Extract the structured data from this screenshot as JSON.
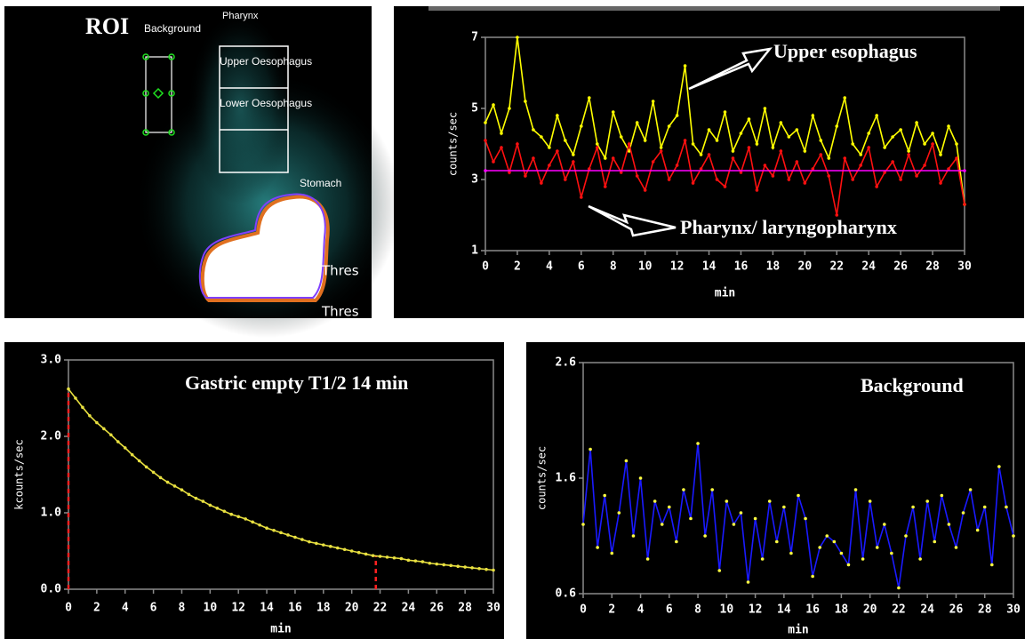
{
  "roi_image": {
    "title": "ROI",
    "labels": [
      "Background",
      "Pharynx",
      "Upper Oesophagus",
      "Lower Oesophagus",
      "Stomach",
      "Thres",
      "Thres"
    ]
  },
  "chart_data": [
    {
      "type": "line",
      "xlabel": "min",
      "ylabel": "counts/sec",
      "x": [
        0,
        0.5,
        1,
        1.5,
        2,
        2.5,
        3,
        3.5,
        4,
        4.5,
        5,
        5.5,
        6,
        6.5,
        7,
        7.5,
        8,
        8.5,
        9,
        9.5,
        10,
        10.5,
        11,
        11.5,
        12,
        12.5,
        13,
        13.5,
        14,
        14.5,
        15,
        15.5,
        16,
        16.5,
        17,
        17.5,
        18,
        18.5,
        19,
        19.5,
        20,
        20.5,
        21,
        21.5,
        22,
        22.5,
        23,
        23.5,
        24,
        24.5,
        25,
        25.5,
        26,
        26.5,
        27,
        27.5,
        28,
        28.5,
        29,
        29.5,
        30
      ],
      "series": [
        {
          "color": "#ffff00",
          "values": [
            4.6,
            5.1,
            4.3,
            5.0,
            7.0,
            5.2,
            4.4,
            4.2,
            3.9,
            4.8,
            4.1,
            3.7,
            4.5,
            5.3,
            4.0,
            3.6,
            4.9,
            4.2,
            3.8,
            4.6,
            4.1,
            5.2,
            3.9,
            4.5,
            4.8,
            6.2,
            4.0,
            3.7,
            4.4,
            4.1,
            4.9,
            3.8,
            4.3,
            4.7,
            4.0,
            5.0,
            3.9,
            4.6,
            4.2,
            4.4,
            3.8,
            4.8,
            4.1,
            3.6,
            4.5,
            5.3,
            4.0,
            3.7,
            4.3,
            4.8,
            3.9,
            4.2,
            4.4,
            3.8,
            4.6,
            4.0,
            4.3,
            3.7,
            4.5,
            4.0,
            2.3
          ]
        },
        {
          "color": "#ff1010",
          "values": [
            4.1,
            3.5,
            3.9,
            3.2,
            4.0,
            3.1,
            3.6,
            2.9,
            3.4,
            3.8,
            3.0,
            3.5,
            2.5,
            3.3,
            3.9,
            2.8,
            3.6,
            3.2,
            4.0,
            3.1,
            2.7,
            3.5,
            3.8,
            3.0,
            3.4,
            4.1,
            2.9,
            3.3,
            3.7,
            3.0,
            2.8,
            3.6,
            3.2,
            3.9,
            2.7,
            3.4,
            3.1,
            3.8,
            3.0,
            3.5,
            2.9,
            3.3,
            3.7,
            3.1,
            2.0,
            3.6,
            3.0,
            3.4,
            3.9,
            2.8,
            3.2,
            3.5,
            3.0,
            3.7,
            3.1,
            3.4,
            4.0,
            2.9,
            3.3,
            3.6,
            2.3
          ]
        },
        {
          "color": "#ff00ff",
          "x": [
            0,
            30
          ],
          "values": [
            3.25,
            3.25
          ]
        }
      ],
      "xlim": [
        0,
        30
      ],
      "xticks": [
        0,
        2,
        4,
        6,
        8,
        10,
        12,
        14,
        16,
        18,
        20,
        22,
        24,
        26,
        28,
        30
      ],
      "ylim": [
        1,
        7
      ],
      "yticks": [
        1,
        3,
        5,
        7
      ],
      "annotations": [
        {
          "text": "Upper esophagus"
        },
        {
          "text": "Pharynx/ laryngopharynx"
        }
      ]
    },
    {
      "type": "line",
      "xlabel": "min",
      "ylabel": "kcounts/sec",
      "x": [
        0,
        0.5,
        1,
        1.5,
        2,
        2.5,
        3,
        3.5,
        4,
        4.5,
        5,
        5.5,
        6,
        6.5,
        7,
        7.5,
        8,
        8.5,
        9,
        9.5,
        10,
        10.5,
        11,
        11.5,
        12,
        12.5,
        13,
        13.5,
        14,
        14.5,
        15,
        15.5,
        16,
        16.5,
        17,
        17.5,
        18,
        18.5,
        19,
        19.5,
        20,
        20.5,
        21,
        21.5,
        22,
        22.5,
        23,
        23.5,
        24,
        24.5,
        25,
        25.5,
        26,
        26.5,
        27,
        27.5,
        28,
        28.5,
        29,
        29.5,
        30
      ],
      "series": [
        {
          "color": "#e8e040",
          "values": [
            2.62,
            2.5,
            2.38,
            2.27,
            2.18,
            2.1,
            2.02,
            1.93,
            1.85,
            1.76,
            1.68,
            1.6,
            1.53,
            1.46,
            1.4,
            1.35,
            1.3,
            1.24,
            1.19,
            1.15,
            1.1,
            1.06,
            1.02,
            0.98,
            0.95,
            0.92,
            0.88,
            0.84,
            0.8,
            0.77,
            0.74,
            0.71,
            0.68,
            0.65,
            0.62,
            0.6,
            0.58,
            0.56,
            0.54,
            0.52,
            0.5,
            0.48,
            0.46,
            0.44,
            0.43,
            0.42,
            0.41,
            0.4,
            0.38,
            0.37,
            0.36,
            0.34,
            0.33,
            0.32,
            0.31,
            0.3,
            0.29,
            0.28,
            0.27,
            0.26,
            0.25
          ]
        }
      ],
      "vlines": {
        "color": "#ff2020",
        "x": [
          0,
          21.7
        ]
      },
      "xlim": [
        0,
        30
      ],
      "xticks": [
        0,
        2,
        4,
        6,
        8,
        10,
        12,
        14,
        16,
        18,
        20,
        22,
        24,
        26,
        28,
        30
      ],
      "ylim": [
        0,
        3
      ],
      "yticks": [
        {
          "value": 0,
          "label": "0.0"
        },
        {
          "value": 1,
          "label": "1.0"
        },
        {
          "value": 2,
          "label": "2.0"
        },
        {
          "value": 3,
          "label": "3.0"
        }
      ],
      "annotations": [
        {
          "text": "Gastric empty T1/2 14 min"
        }
      ]
    },
    {
      "type": "line",
      "xlabel": "min",
      "ylabel": "counts/sec",
      "x": [
        0,
        0.5,
        1,
        1.5,
        2,
        2.5,
        3,
        3.5,
        4,
        4.5,
        5,
        5.5,
        6,
        6.5,
        7,
        7.5,
        8,
        8.5,
        9,
        9.5,
        10,
        10.5,
        11,
        11.5,
        12,
        12.5,
        13,
        13.5,
        14,
        14.5,
        15,
        15.5,
        16,
        16.5,
        17,
        17.5,
        18,
        18.5,
        19,
        19.5,
        20,
        20.5,
        21,
        21.5,
        22,
        22.5,
        23,
        23.5,
        24,
        24.5,
        25,
        25.5,
        26,
        26.5,
        27,
        27.5,
        28,
        28.5,
        29,
        29.5,
        30
      ],
      "series": [
        {
          "color": "#1a1aff",
          "marker_color": "#ffff40",
          "values": [
            1.2,
            1.85,
            1.0,
            1.45,
            0.95,
            1.3,
            1.75,
            1.1,
            1.6,
            0.9,
            1.4,
            1.2,
            1.35,
            1.05,
            1.5,
            1.25,
            1.9,
            1.1,
            1.5,
            0.8,
            1.4,
            1.2,
            1.3,
            0.7,
            1.25,
            0.9,
            1.4,
            1.05,
            1.35,
            0.95,
            1.45,
            1.25,
            0.75,
            1.0,
            1.1,
            1.05,
            0.95,
            0.85,
            1.5,
            0.9,
            1.4,
            1.0,
            1.2,
            0.95,
            0.65,
            1.1,
            1.35,
            0.9,
            1.4,
            1.05,
            1.45,
            1.2,
            1.0,
            1.3,
            1.5,
            1.15,
            1.35,
            0.85,
            1.7,
            1.35,
            1.1
          ]
        }
      ],
      "xlim": [
        0,
        30
      ],
      "xticks": [
        0,
        2,
        4,
        6,
        8,
        10,
        12,
        14,
        16,
        18,
        20,
        22,
        24,
        26,
        28,
        30
      ],
      "ylim": [
        0.6,
        2.6
      ],
      "yticks": [
        0.6,
        1.6,
        2.6
      ],
      "annotations": [
        {
          "text": "Background"
        }
      ]
    }
  ]
}
